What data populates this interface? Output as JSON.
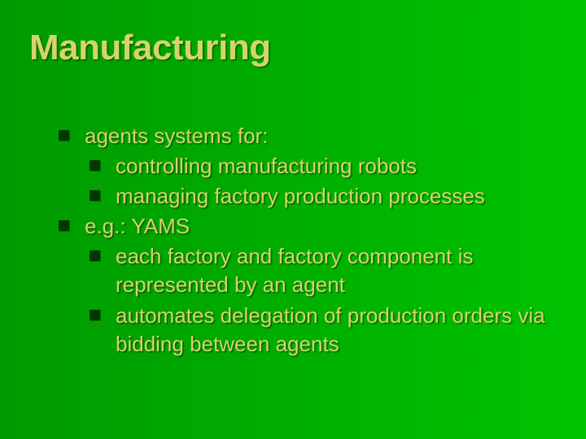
{
  "slide": {
    "title": "Manufacturing",
    "background_gradient": [
      "#009a00",
      "#00c400"
    ],
    "title_color": "#d4d46a",
    "title_fontsize": 44,
    "text_color": "#d4d46a",
    "text_fontsize": 26,
    "bullet_color": "#003800",
    "bullet_shape": "square",
    "bullets": [
      {
        "level": 1,
        "text": "agents systems for:"
      },
      {
        "level": 2,
        "text": "controlling manufacturing robots"
      },
      {
        "level": 2,
        "text": "managing factory production processes"
      },
      {
        "level": 1,
        "text": "e.g.: YAMS"
      },
      {
        "level": 2,
        "text": "each factory and factory component is represented by an agent"
      },
      {
        "level": 2,
        "text": "automates delegation of production orders via bidding between agents"
      }
    ]
  }
}
